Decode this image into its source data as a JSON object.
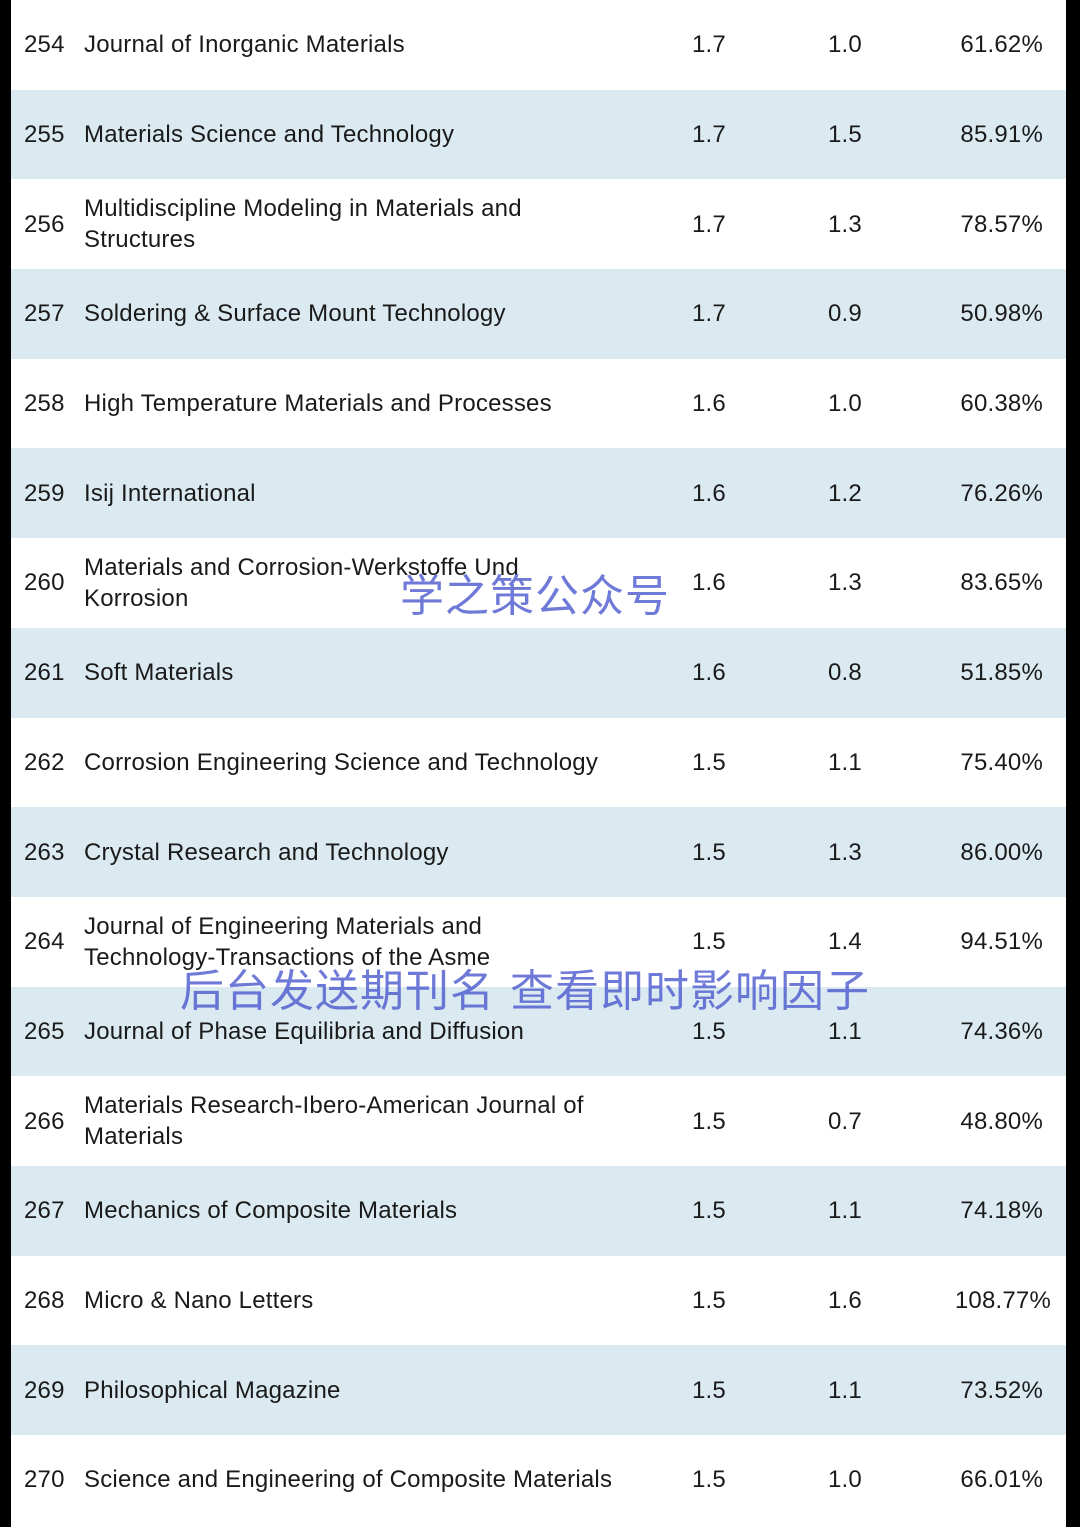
{
  "rows": [
    {
      "rank": "254",
      "journal": "Journal of Inorganic Materials",
      "if": "1.7",
      "if5": "1.0",
      "pct": "61.62%"
    },
    {
      "rank": "255",
      "journal": "Materials Science and Technology",
      "if": "1.7",
      "if5": "1.5",
      "pct": "85.91%"
    },
    {
      "rank": "256",
      "journal": "Multidiscipline Modeling in Materials and Structures",
      "if": "1.7",
      "if5": "1.3",
      "pct": "78.57%"
    },
    {
      "rank": "257",
      "journal": "Soldering & Surface Mount Technology",
      "if": "1.7",
      "if5": "0.9",
      "pct": "50.98%"
    },
    {
      "rank": "258",
      "journal": "High Temperature Materials and Processes",
      "if": "1.6",
      "if5": "1.0",
      "pct": "60.38%"
    },
    {
      "rank": "259",
      "journal": "Isij International",
      "if": "1.6",
      "if5": "1.2",
      "pct": "76.26%"
    },
    {
      "rank": "260",
      "journal": "Materials and Corrosion-Werkstoffe Und Korrosion",
      "if": "1.6",
      "if5": "1.3",
      "pct": "83.65%"
    },
    {
      "rank": "261",
      "journal": "Soft Materials",
      "if": "1.6",
      "if5": "0.8",
      "pct": "51.85%"
    },
    {
      "rank": "262",
      "journal": "Corrosion Engineering Science and Technology",
      "if": "1.5",
      "if5": "1.1",
      "pct": "75.40%"
    },
    {
      "rank": "263",
      "journal": "Crystal Research and Technology",
      "if": "1.5",
      "if5": "1.3",
      "pct": "86.00%"
    },
    {
      "rank": "264",
      "journal": "Journal of Engineering Materials and Technology-Transactions of the Asme",
      "if": "1.5",
      "if5": "1.4",
      "pct": "94.51%"
    },
    {
      "rank": "265",
      "journal": "Journal of Phase Equilibria and Diffusion",
      "if": "1.5",
      "if5": "1.1",
      "pct": "74.36%"
    },
    {
      "rank": "266",
      "journal": "Materials Research-Ibero-American Journal of Materials",
      "if": "1.5",
      "if5": "0.7",
      "pct": "48.80%"
    },
    {
      "rank": "267",
      "journal": "Mechanics of Composite Materials",
      "if": "1.5",
      "if5": "1.1",
      "pct": "74.18%"
    },
    {
      "rank": "268",
      "journal": "Micro & Nano Letters",
      "if": "1.5",
      "if5": "1.6",
      "pct": "108.77%"
    },
    {
      "rank": "269",
      "journal": "Philosophical Magazine",
      "if": "1.5",
      "if5": "1.1",
      "pct": "73.52%"
    },
    {
      "rank": "270",
      "journal": "Science and Engineering of Composite Materials",
      "if": "1.5",
      "if5": "1.0",
      "pct": "66.01%"
    }
  ],
  "watermarks": {
    "top": "学之策公众号",
    "bottom": "后台发送期刊名 查看即时影响因子"
  },
  "colors": {
    "alt_row": "#dbe9f1",
    "border": "#000000",
    "watermark": "#4655cd"
  }
}
